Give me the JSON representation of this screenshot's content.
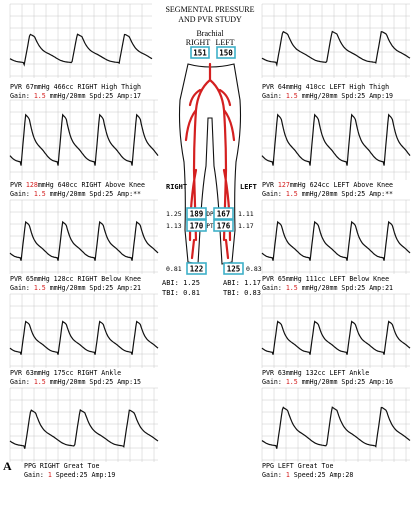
{
  "title": {
    "line1": "SEGMENTAL PRESSURE",
    "line2": "AND PVR STUDY",
    "site": "Brachial",
    "right": "RIGHT",
    "left": "LEFT"
  },
  "figure_label": "A",
  "colors": {
    "box": "#3fb0c8",
    "artery": "#d42020",
    "red_text": "#d42020",
    "grid": "#c8c8c8",
    "trace": "#111111"
  },
  "side_labels": {
    "right": "RIGHT",
    "left": "LEFT",
    "dp": "DP",
    "pt": "PT"
  },
  "pressures": {
    "brachial_right": "151",
    "brachial_left": "150",
    "dp_right": "189",
    "dp_left": "167",
    "pt_right": "170",
    "pt_left": "176",
    "toe_right": "122",
    "toe_left": "125",
    "abi_dp_right": "1.25",
    "abi_dp_left": "1.11",
    "abi_pt_right": "1.13",
    "abi_pt_left": "1.17",
    "tbi_right_side": "0.81",
    "tbi_left_side": "0.83"
  },
  "indices": {
    "right_abi": "ABI: 1.25",
    "right_tbi": "TBI: 0.81",
    "left_abi": "ABI: 1.17",
    "left_tbi": "TBI: 0.83"
  },
  "panels": {
    "r_thigh": {
      "line1_a": "PVR  67mmHg 466cc  RIGHT High Thigh",
      "gain_pre": "Gain: ",
      "gain_val": "1.5",
      "gain_post": " mmHg/20mm  Spd:25  Amp:17",
      "cycles": 3,
      "amp": 0.55
    },
    "l_thigh": {
      "line1_a": "PVR  64mmHg 410cc  LEFT High Thigh",
      "gain_pre": "Gain: ",
      "gain_val": "1.5",
      "gain_post": " mmHg/20mm  Spd:25  Amp:19",
      "cycles": 3,
      "amp": 0.6
    },
    "r_aknee": {
      "line1_pre": "PVR ",
      "line1_red": "128",
      "line1_post": "mmHg 640cc  RIGHT Above Knee",
      "gain_pre": "Gain: ",
      "gain_val": "1.5",
      "gain_post": " mmHg/20mm  Spd:25  Amp:**",
      "cycles": 4,
      "amp": 0.85
    },
    "l_aknee": {
      "line1_pre": "PVR ",
      "line1_red": "127",
      "line1_post": "mmHg 624cc  LEFT Above Knee",
      "gain_pre": "Gain: ",
      "gain_val": "1.5",
      "gain_post": " mmHg/20mm  Spd:25  Amp:**",
      "cycles": 4,
      "amp": 0.85
    },
    "r_bknee": {
      "line1_a": "PVR  65mmHg 128cc  RIGHT Below Knee",
      "gain_pre": "Gain: ",
      "gain_val": "1.5",
      "gain_post": " mmHg/20mm  Spd:25  Amp:21",
      "cycles": 4,
      "amp": 0.7
    },
    "l_bknee": {
      "line1_a": "PVR  65mmHg 111cc  LEFT Below Knee",
      "gain_pre": "Gain: ",
      "gain_val": "1.5",
      "gain_post": " mmHg/20mm  Spd:25  Amp:21",
      "cycles": 4,
      "amp": 0.7
    },
    "r_ankle": {
      "line1_a": "PVR  63mmHg 175cc  RIGHT Ankle",
      "gain_pre": "Gain: ",
      "gain_val": "1.5",
      "gain_post": " mmHg/20mm  Spd:25  Amp:15",
      "cycles": 4,
      "amp": 0.6
    },
    "l_ankle": {
      "line1_a": "PVR  63mmHg 132cc  LEFT Ankle",
      "gain_pre": "Gain: ",
      "gain_val": "1.5",
      "gain_post": " mmHg/20mm  Spd:25  Amp:16",
      "cycles": 4,
      "amp": 0.6
    },
    "r_toe": {
      "line1_a": "PPG RIGHT Great Toe",
      "gain_pre": "Gain:  ",
      "gain_val": "1",
      "gain_post": "  Speed:25  Amp:19",
      "cycles": 3,
      "amp": 0.7
    },
    "l_toe": {
      "line1_a": "PPG LEFT Great Toe",
      "gain_pre": "Gain:  ",
      "gain_val": "1",
      "gain_post": "  Speed:25  Amp:28",
      "cycles": 3,
      "amp": 0.75
    }
  }
}
